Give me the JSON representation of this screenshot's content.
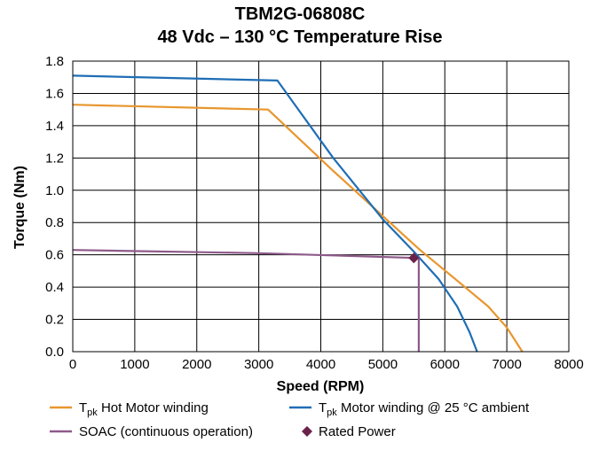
{
  "chart_data": {
    "type": "line",
    "title": "TBM2G-06808C",
    "subtitle": "48 Vdc – 130 °C Temperature Rise",
    "xlabel": "Speed (RPM)",
    "ylabel": "Torque (Nm)",
    "xlim": [
      0,
      8000
    ],
    "ylim": [
      0,
      1.8
    ],
    "x_ticks": [
      "0",
      "1000",
      "2000",
      "3000",
      "4000",
      "5000",
      "6000",
      "7000",
      "8000"
    ],
    "y_ticks": [
      "0.0",
      "0.2",
      "0.4",
      "0.6",
      "0.8",
      "1.0",
      "1.2",
      "1.4",
      "1.6",
      "1.8"
    ],
    "grid": true,
    "legend_position": "bottom",
    "series": [
      {
        "name_main": "T",
        "name_sub": "pk",
        "name_rest": " Hot Motor winding",
        "color": "#E8962E",
        "x": [
          0,
          3150,
          4200,
          5000,
          5600,
          6200,
          6700,
          7000,
          7250
        ],
        "y": [
          1.53,
          1.5,
          1.12,
          0.84,
          0.63,
          0.44,
          0.28,
          0.15,
          0.0
        ]
      },
      {
        "name_main": "T",
        "name_sub": "pk",
        "name_rest": " Motor winding @ 25 °C ambient",
        "color": "#1F6EB5",
        "x": [
          0,
          3300,
          4200,
          5000,
          5500,
          5900,
          6200,
          6400,
          6520
        ],
        "y": [
          1.71,
          1.68,
          1.2,
          0.82,
          0.62,
          0.45,
          0.28,
          0.12,
          0.0
        ]
      },
      {
        "name_main": "SOAC (continuous operation)",
        "name_sub": "",
        "name_rest": "",
        "color": "#8E5A8A",
        "x": [
          0,
          3000,
          5580,
          5580
        ],
        "y": [
          0.63,
          0.61,
          0.58,
          0.0
        ]
      }
    ],
    "points": [
      {
        "name": "Rated Power",
        "x": 5500,
        "y": 0.58,
        "color": "#6B2249",
        "marker": "diamond"
      }
    ]
  }
}
